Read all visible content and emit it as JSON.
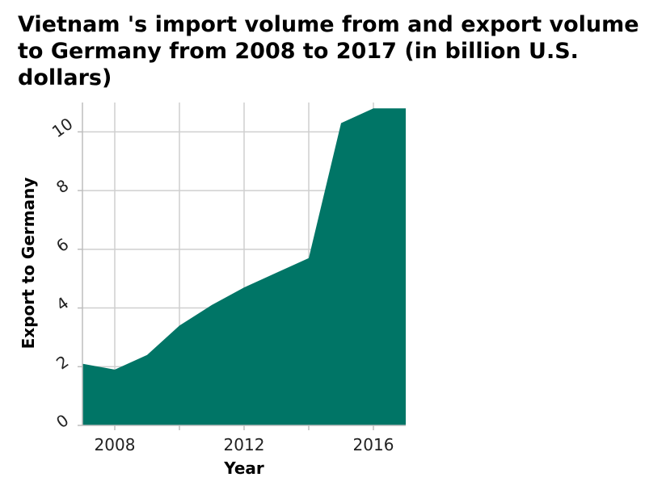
{
  "chart_data": {
    "type": "area",
    "title": "Vietnam 's import volume from and export volume to Germany from 2008 to 2017 (in billion U.S. dollars)",
    "xlabel": "Year",
    "ylabel": "Export to Germany",
    "x": [
      2007,
      2008,
      2009,
      2010,
      2011,
      2012,
      2013,
      2014,
      2015,
      2016,
      2017
    ],
    "series": [
      {
        "values": [
          2.1,
          1.9,
          2.4,
          3.4,
          4.1,
          4.7,
          5.2,
          5.7,
          10.3,
          10.8,
          10.8
        ]
      }
    ],
    "xlim": [
      2007,
      2017
    ],
    "ylim": [
      0,
      11
    ],
    "x_ticks": [
      2008,
      2012,
      2016
    ],
    "y_ticks": [
      0,
      2,
      4,
      6,
      8,
      10
    ],
    "x_tick_labels": [
      "2008",
      "2012",
      "2016"
    ],
    "y_tick_labels": [
      "0",
      "2",
      "4",
      "6",
      "8",
      "10"
    ],
    "grid": true,
    "fill_color": "#007566"
  }
}
